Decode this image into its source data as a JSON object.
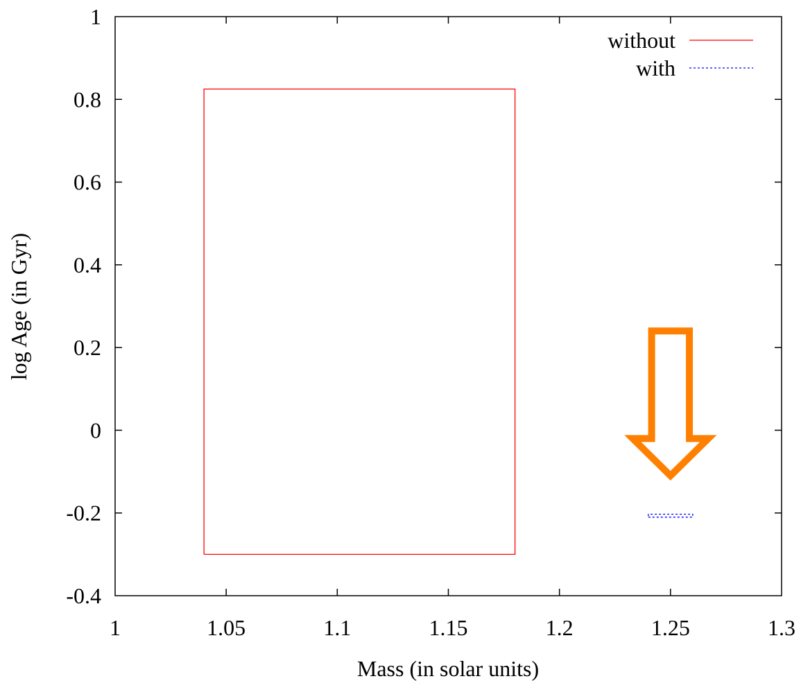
{
  "chart_data": {
    "type": "line",
    "title": "",
    "xlabel": "Mass (in solar units)",
    "ylabel": "log Age (in Gyr)",
    "xlim": [
      1,
      1.3
    ],
    "ylim": [
      -0.4,
      1
    ],
    "x_ticks": [
      1,
      1.05,
      1.1,
      1.15,
      1.2,
      1.25,
      1.3
    ],
    "x_tick_labels": [
      "1",
      "1.05",
      "1.1",
      "1.15",
      "1.2",
      "1.25",
      "1.3"
    ],
    "y_ticks": [
      -0.4,
      -0.2,
      0,
      0.2,
      0.4,
      0.6,
      0.8,
      1
    ],
    "y_tick_labels": [
      "-0.4",
      "-0.2",
      "0",
      "0.2",
      "0.4",
      "0.6",
      "0.8",
      "1"
    ],
    "grid": false,
    "legend_position": "top-right",
    "series": [
      {
        "name": "without",
        "color": "#ff0000",
        "dash": "solid",
        "x": [
          1.04,
          1.18,
          1.18,
          1.04,
          1.04
        ],
        "y": [
          -0.3,
          -0.3,
          0.825,
          0.825,
          -0.3
        ]
      },
      {
        "name": "with",
        "color": "#0000ff",
        "dash": "dotted",
        "x": [
          1.24,
          1.26,
          1.26,
          1.24,
          1.24
        ],
        "y": [
          -0.21,
          -0.21,
          -0.203,
          -0.203,
          -0.21
        ]
      }
    ],
    "annotations": [
      {
        "type": "arrow",
        "direction": "down",
        "color": "#ff8000",
        "x_center": 1.25,
        "y_top": 0.24,
        "y_shaft_bottom": -0.02,
        "y_tip": -0.11,
        "shaft_halfwidth": 0.0085,
        "head_halfwidth": 0.017
      }
    ]
  }
}
